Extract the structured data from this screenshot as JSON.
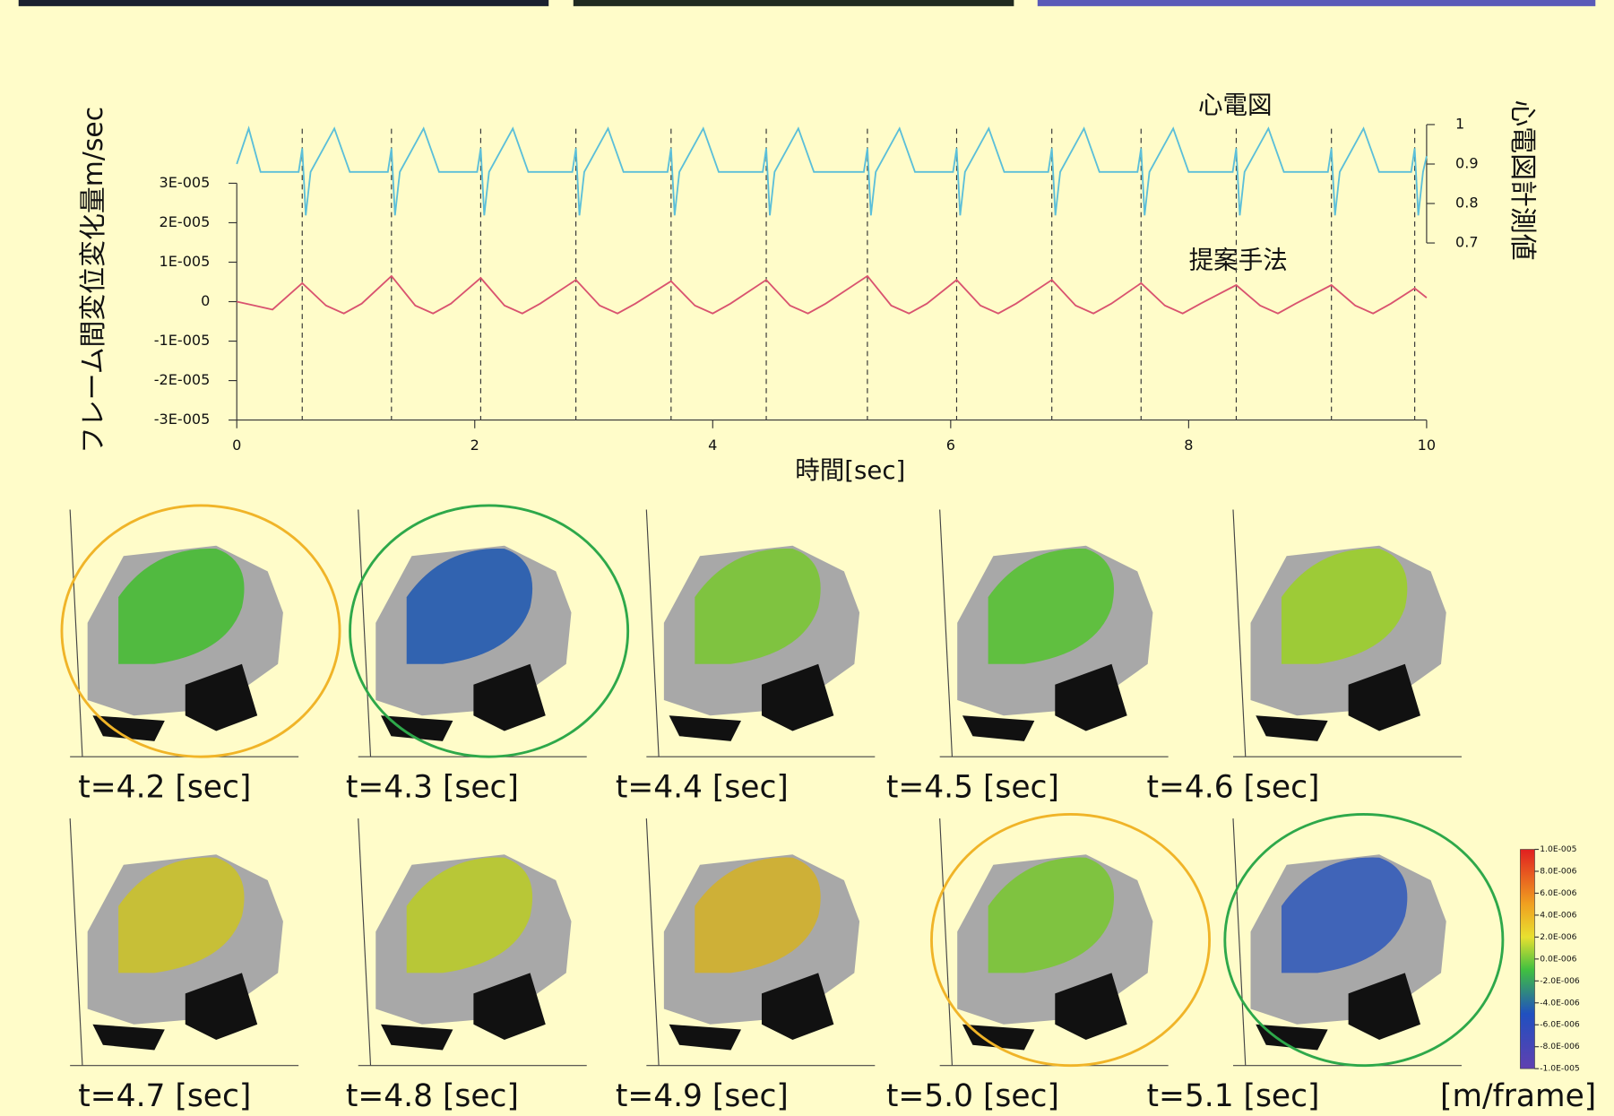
{
  "chart_data": {
    "type": "line",
    "ylabel": "フレーム間変位変化量m/sec",
    "xlabel": "時間[sec]",
    "y2label": "心電図計測値",
    "xlim": [
      0,
      10
    ],
    "xticks": [
      0,
      2,
      4,
      6,
      8,
      10
    ],
    "ylim": [
      -3e-05,
      3e-05
    ],
    "yticks": [
      {
        "value": -3e-05,
        "label": "-3E-005"
      },
      {
        "value": -2e-05,
        "label": "-2E-005"
      },
      {
        "value": -1e-05,
        "label": "-1E-005"
      },
      0,
      {
        "value": 1e-05,
        "label": "1E-005"
      },
      {
        "value": 2e-05,
        "label": "2E-005"
      },
      {
        "value": 3e-05,
        "label": "3E-005"
      }
    ],
    "y2lim": [
      0.7,
      1
    ],
    "y2ticks": [
      0.7,
      0.8,
      0.9,
      1
    ],
    "vlines": [
      0.55,
      1.3,
      2.05,
      2.85,
      3.65,
      4.45,
      5.3,
      6.05,
      6.85,
      7.6,
      8.4,
      9.2,
      9.9
    ],
    "series": [
      {
        "name": "心電図",
        "color": "#5bbfd9",
        "axis": "y2",
        "x": [
          0,
          0.1,
          0.2,
          0.52,
          0.55,
          0.58,
          0.62,
          0.82,
          0.95,
          1.27,
          1.3,
          1.33,
          1.37,
          1.57,
          1.7,
          2.02,
          2.05,
          2.08,
          2.12,
          2.32,
          2.45,
          2.82,
          2.85,
          2.88,
          2.92,
          3.12,
          3.25,
          3.62,
          3.65,
          3.68,
          3.72,
          3.92,
          4.05,
          4.42,
          4.45,
          4.48,
          4.52,
          4.72,
          4.85,
          5.27,
          5.3,
          5.33,
          5.37,
          5.57,
          5.7,
          6.02,
          6.05,
          6.08,
          6.12,
          6.32,
          6.45,
          6.82,
          6.85,
          6.88,
          6.92,
          7.12,
          7.25,
          7.57,
          7.6,
          7.63,
          7.67,
          7.87,
          8.0,
          8.37,
          8.4,
          8.43,
          8.47,
          8.67,
          8.8,
          9.17,
          9.2,
          9.23,
          9.27,
          9.47,
          9.6,
          9.87,
          9.9,
          9.93,
          9.97,
          10
        ],
        "values": [
          0.9,
          0.99,
          0.88,
          0.88,
          0.94,
          0.77,
          0.88,
          0.99,
          0.88,
          0.88,
          0.94,
          0.77,
          0.88,
          0.99,
          0.88,
          0.88,
          0.94,
          0.77,
          0.88,
          0.99,
          0.88,
          0.88,
          0.94,
          0.77,
          0.88,
          0.99,
          0.88,
          0.88,
          0.94,
          0.77,
          0.88,
          0.99,
          0.88,
          0.88,
          0.94,
          0.77,
          0.88,
          0.99,
          0.88,
          0.88,
          0.94,
          0.77,
          0.88,
          0.99,
          0.88,
          0.88,
          0.94,
          0.77,
          0.88,
          0.99,
          0.88,
          0.88,
          0.94,
          0.77,
          0.88,
          0.99,
          0.88,
          0.88,
          0.94,
          0.77,
          0.88,
          0.99,
          0.88,
          0.88,
          0.94,
          0.77,
          0.88,
          0.99,
          0.88,
          0.88,
          0.94,
          0.77,
          0.88,
          0.99,
          0.88,
          0.88,
          0.94,
          0.77,
          0.88,
          0.92
        ]
      },
      {
        "name": "提案手法",
        "color": "#d9536f",
        "axis": "y",
        "x": [
          0,
          0.15,
          0.3,
          0.55,
          0.75,
          0.9,
          1.05,
          1.3,
          1.5,
          1.65,
          1.8,
          2.05,
          2.25,
          2.4,
          2.55,
          2.85,
          3.05,
          3.2,
          3.35,
          3.65,
          3.85,
          4.0,
          4.15,
          4.45,
          4.65,
          4.8,
          4.95,
          5.3,
          5.5,
          5.65,
          5.8,
          6.05,
          6.25,
          6.4,
          6.55,
          6.85,
          7.05,
          7.2,
          7.35,
          7.6,
          7.8,
          7.95,
          8.1,
          8.4,
          8.6,
          8.75,
          8.9,
          9.2,
          9.4,
          9.55,
          9.7,
          9.9,
          10
        ],
        "values": [
          0,
          -1e-06,
          -2e-06,
          4.7e-06,
          -1e-06,
          -3e-06,
          -5e-07,
          6.5e-06,
          -1e-06,
          -3e-06,
          -5e-07,
          6e-06,
          -1e-06,
          -3e-06,
          -5e-07,
          5.5e-06,
          -1e-06,
          -3e-06,
          -5e-07,
          5.2e-06,
          -1e-06,
          -3e-06,
          -5e-07,
          5.5e-06,
          -1e-06,
          -3e-06,
          -5e-07,
          6.5e-06,
          -1e-06,
          -3e-06,
          -5e-07,
          5.5e-06,
          -1e-06,
          -3e-06,
          -5e-07,
          5.5e-06,
          -1e-06,
          -3e-06,
          -5e-07,
          4.7e-06,
          -1e-06,
          -3e-06,
          -5e-07,
          4.2e-06,
          -1e-06,
          -3e-06,
          -5e-07,
          4.2e-06,
          -1e-06,
          -3e-06,
          -5e-07,
          3.4e-06,
          1e-06
        ]
      }
    ]
  },
  "panels": [
    {
      "label": "t=4.2 [sec]",
      "tint": "#4cbb3a",
      "ring": "#f0b428"
    },
    {
      "label": "t=4.3 [sec]",
      "tint": "#2a5fb0",
      "ring": "#2ea84a"
    },
    {
      "label": "t=4.4 [sec]",
      "tint": "#7cc43a"
    },
    {
      "label": "t=4.5 [sec]",
      "tint": "#5cc03a"
    },
    {
      "label": "t=4.6 [sec]",
      "tint": "#9ccc30"
    },
    {
      "label": "t=4.7 [sec]",
      "tint": "#c8c030"
    },
    {
      "label": "t=4.8 [sec]",
      "tint": "#b8c830"
    },
    {
      "label": "t=4.9 [sec]",
      "tint": "#d0b030"
    },
    {
      "label": "t=5.0 [sec]",
      "tint": "#7cc43a",
      "ring": "#f0b428"
    },
    {
      "label": "t=5.1 [sec]",
      "tint": "#3a60b8",
      "ring": "#2ea84a"
    }
  ],
  "colorbar": {
    "unit": "[m/frame]",
    "ticks": [
      {
        "value": 1e-05,
        "label": "1.0E-005"
      },
      {
        "value": 8e-06,
        "label": "8.0E-006"
      },
      {
        "value": 6e-06,
        "label": "6.0E-006"
      },
      {
        "value": 4e-06,
        "label": "4.0E-006"
      },
      {
        "value": 2e-06,
        "label": "2.0E-006"
      },
      {
        "value": 0,
        "label": "0.0E-006"
      },
      {
        "value": -2e-06,
        "label": "-2.0E-006"
      },
      {
        "value": -4e-06,
        "label": "-4.0E-006"
      },
      {
        "value": -6e-06,
        "label": "-6.0E-006"
      },
      {
        "value": -8e-06,
        "label": "-8.0E-006"
      },
      {
        "value": -1e-05,
        "label": "-1.0E-005"
      }
    ]
  }
}
